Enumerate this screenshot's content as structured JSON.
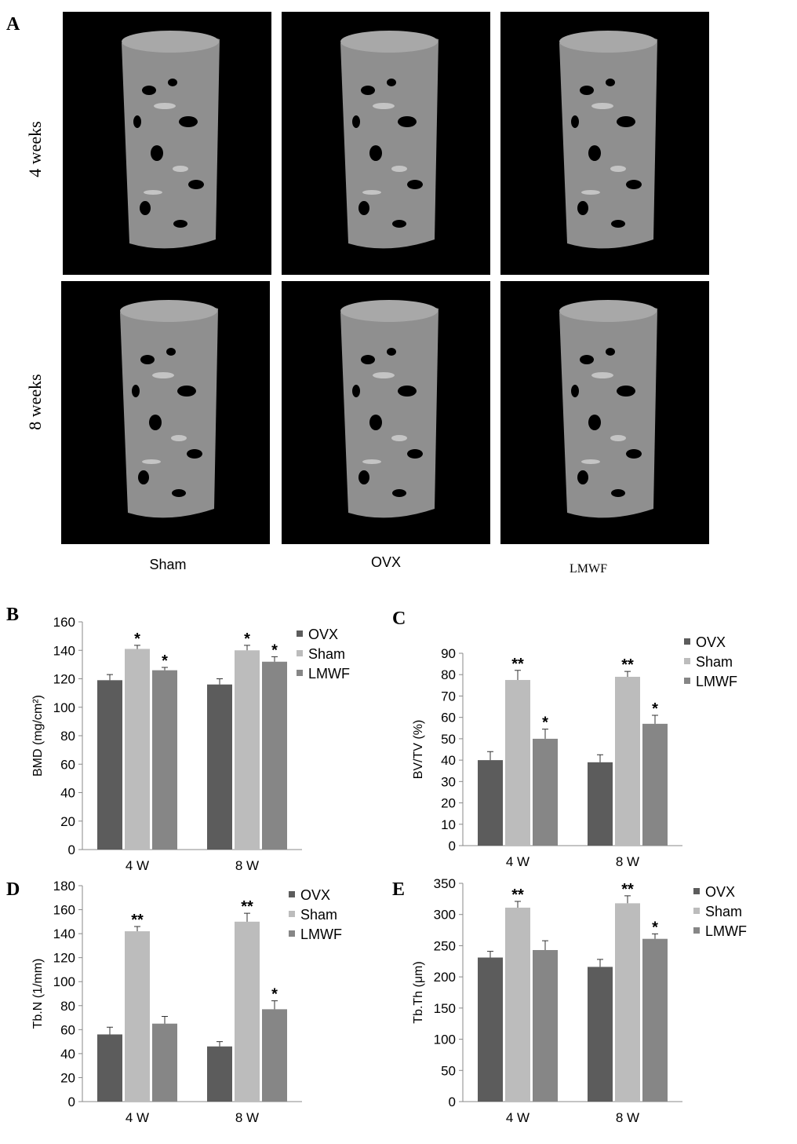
{
  "panel_a": {
    "label": "A",
    "rows": [
      "4 weeks",
      "8 weeks"
    ],
    "columns": [
      "Sham",
      "OVX",
      "LMWF"
    ]
  },
  "chart_data": [
    {
      "type": "bar",
      "panel": "B",
      "ylabel": "BMD (mg/cm²)",
      "categories": [
        "4 W",
        "8 W"
      ],
      "series": [
        {
          "name": "OVX",
          "color": "#5c5c5c",
          "values": [
            119,
            116
          ],
          "errors": [
            4,
            4
          ]
        },
        {
          "name": "Sham",
          "color": "#bcbcbc",
          "values": [
            141,
            140
          ],
          "errors": [
            2.5,
            3.5
          ],
          "annotations": [
            "*",
            "*"
          ]
        },
        {
          "name": "LMWF",
          "color": "#868686",
          "values": [
            126,
            132
          ],
          "errors": [
            2,
            3.5
          ],
          "annotations": [
            "*",
            "*"
          ]
        }
      ],
      "ylim": [
        0,
        160
      ],
      "yticks": [
        0,
        20,
        40,
        60,
        80,
        100,
        120,
        140,
        160
      ],
      "legend": "right"
    },
    {
      "type": "bar",
      "panel": "C",
      "ylabel": "BV/TV (%)",
      "categories": [
        "4 W",
        "8 W"
      ],
      "series": [
        {
          "name": "OVX",
          "color": "#5c5c5c",
          "values": [
            40,
            39
          ],
          "errors": [
            4,
            3.5
          ]
        },
        {
          "name": "Sham",
          "color": "#bcbcbc",
          "values": [
            77.5,
            79
          ],
          "errors": [
            4.5,
            2.5
          ],
          "annotations": [
            "**",
            "**"
          ]
        },
        {
          "name": "LMWF",
          "color": "#868686",
          "values": [
            50,
            57
          ],
          "errors": [
            4.5,
            4
          ],
          "annotations": [
            "*",
            "*"
          ]
        }
      ],
      "ylim": [
        0,
        90
      ],
      "yticks": [
        0,
        10,
        20,
        30,
        40,
        50,
        60,
        70,
        80,
        90
      ],
      "legend": "right"
    },
    {
      "type": "bar",
      "panel": "D",
      "ylabel": "Tb.N (1/mm)",
      "categories": [
        "4 W",
        "8 W"
      ],
      "series": [
        {
          "name": "OVX",
          "color": "#5c5c5c",
          "values": [
            56,
            46
          ],
          "errors": [
            6,
            4
          ]
        },
        {
          "name": "Sham",
          "color": "#bcbcbc",
          "values": [
            142,
            150
          ],
          "errors": [
            4,
            7
          ],
          "annotations": [
            "**",
            "**"
          ]
        },
        {
          "name": "LMWF",
          "color": "#868686",
          "values": [
            65,
            77
          ],
          "errors": [
            6,
            7
          ],
          "annotations": [
            null,
            "*"
          ]
        }
      ],
      "ylim": [
        0,
        180
      ],
      "yticks": [
        0,
        20,
        40,
        60,
        80,
        100,
        120,
        140,
        160,
        180
      ],
      "legend": "right"
    },
    {
      "type": "bar",
      "panel": "E",
      "ylabel": "Tb.Th (μm)",
      "categories": [
        "4 W",
        "8 W"
      ],
      "series": [
        {
          "name": "OVX",
          "color": "#5c5c5c",
          "values": [
            231,
            216
          ],
          "errors": [
            10,
            12
          ]
        },
        {
          "name": "Sham",
          "color": "#bcbcbc",
          "values": [
            311,
            318
          ],
          "errors": [
            10,
            12
          ],
          "annotations": [
            "**",
            "**"
          ]
        },
        {
          "name": "LMWF",
          "color": "#868686",
          "values": [
            243,
            261
          ],
          "errors": [
            15,
            8
          ],
          "annotations": [
            null,
            "*"
          ]
        }
      ],
      "ylim": [
        0,
        350
      ],
      "yticks": [
        0,
        50,
        100,
        150,
        200,
        250,
        300,
        350
      ],
      "legend": "right"
    }
  ]
}
